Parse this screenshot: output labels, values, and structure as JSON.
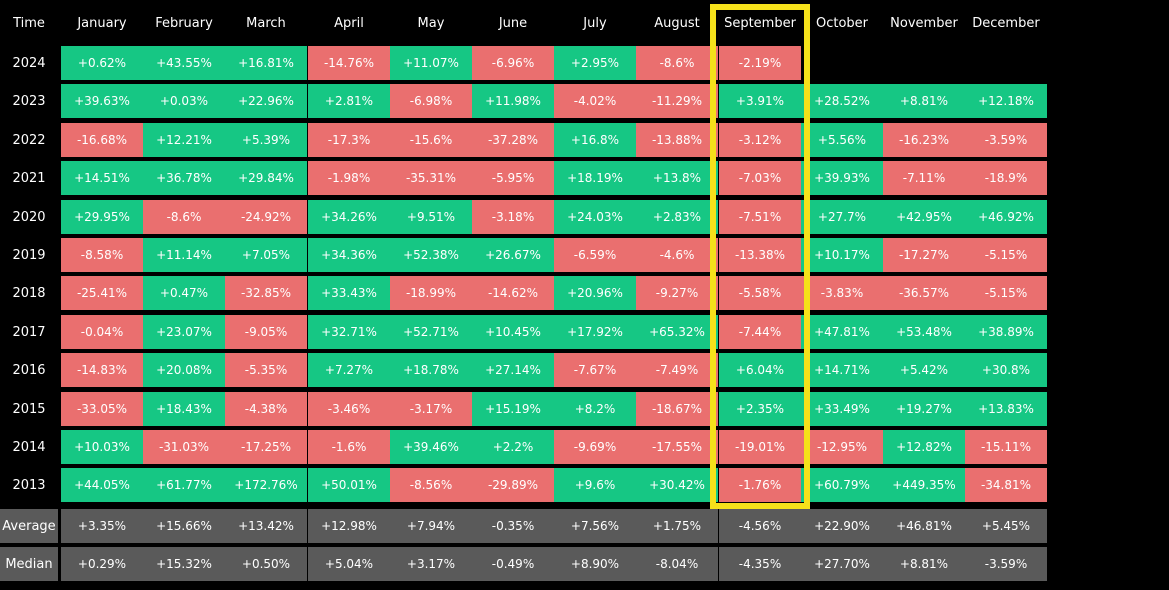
{
  "chart_data": {
    "type": "table",
    "corner_label": "Time",
    "columns": [
      "January",
      "February",
      "March",
      "April",
      "May",
      "June",
      "July",
      "August",
      "September",
      "October",
      "November",
      "December"
    ],
    "highlighted_column": "September",
    "rows": [
      {
        "label": "2024",
        "values": [
          "+0.62%",
          "+43.55%",
          "+16.81%",
          "-14.76%",
          "+11.07%",
          "-6.96%",
          "+2.95%",
          "-8.6%",
          "-2.19%",
          null,
          null,
          null
        ]
      },
      {
        "label": "2023",
        "values": [
          "+39.63%",
          "+0.03%",
          "+22.96%",
          "+2.81%",
          "-6.98%",
          "+11.98%",
          "-4.02%",
          "-11.29%",
          "+3.91%",
          "+28.52%",
          "+8.81%",
          "+12.18%"
        ]
      },
      {
        "label": "2022",
        "values": [
          "-16.68%",
          "+12.21%",
          "+5.39%",
          "-17.3%",
          "-15.6%",
          "-37.28%",
          "+16.8%",
          "-13.88%",
          "-3.12%",
          "+5.56%",
          "-16.23%",
          "-3.59%"
        ]
      },
      {
        "label": "2021",
        "values": [
          "+14.51%",
          "+36.78%",
          "+29.84%",
          "-1.98%",
          "-35.31%",
          "-5.95%",
          "+18.19%",
          "+13.8%",
          "-7.03%",
          "+39.93%",
          "-7.11%",
          "-18.9%"
        ]
      },
      {
        "label": "2020",
        "values": [
          "+29.95%",
          "-8.6%",
          "-24.92%",
          "+34.26%",
          "+9.51%",
          "-3.18%",
          "+24.03%",
          "+2.83%",
          "-7.51%",
          "+27.7%",
          "+42.95%",
          "+46.92%"
        ]
      },
      {
        "label": "2019",
        "values": [
          "-8.58%",
          "+11.14%",
          "+7.05%",
          "+34.36%",
          "+52.38%",
          "+26.67%",
          "-6.59%",
          "-4.6%",
          "-13.38%",
          "+10.17%",
          "-17.27%",
          "-5.15%"
        ]
      },
      {
        "label": "2018",
        "values": [
          "-25.41%",
          "+0.47%",
          "-32.85%",
          "+33.43%",
          "-18.99%",
          "-14.62%",
          "+20.96%",
          "-9.27%",
          "-5.58%",
          "-3.83%",
          "-36.57%",
          "-5.15%"
        ]
      },
      {
        "label": "2017",
        "values": [
          "-0.04%",
          "+23.07%",
          "-9.05%",
          "+32.71%",
          "+52.71%",
          "+10.45%",
          "+17.92%",
          "+65.32%",
          "-7.44%",
          "+47.81%",
          "+53.48%",
          "+38.89%"
        ]
      },
      {
        "label": "2016",
        "values": [
          "-14.83%",
          "+20.08%",
          "-5.35%",
          "+7.27%",
          "+18.78%",
          "+27.14%",
          "-7.67%",
          "-7.49%",
          "+6.04%",
          "+14.71%",
          "+5.42%",
          "+30.8%"
        ]
      },
      {
        "label": "2015",
        "values": [
          "-33.05%",
          "+18.43%",
          "-4.38%",
          "-3.46%",
          "-3.17%",
          "+15.19%",
          "+8.2%",
          "-18.67%",
          "+2.35%",
          "+33.49%",
          "+19.27%",
          "+13.83%"
        ]
      },
      {
        "label": "2014",
        "values": [
          "+10.03%",
          "-31.03%",
          "-17.25%",
          "-1.6%",
          "+39.46%",
          "+2.2%",
          "-9.69%",
          "-17.55%",
          "-19.01%",
          "-12.95%",
          "+12.82%",
          "-15.11%"
        ]
      },
      {
        "label": "2013",
        "values": [
          "+44.05%",
          "+61.77%",
          "+172.76%",
          "+50.01%",
          "-8.56%",
          "-29.89%",
          "+9.6%",
          "+30.42%",
          "-1.76%",
          "+60.79%",
          "+449.35%",
          "-34.81%"
        ]
      }
    ],
    "summary_rows": [
      {
        "label": "Average",
        "values": [
          "+3.35%",
          "+15.66%",
          "+13.42%",
          "+12.98%",
          "+7.94%",
          "-0.35%",
          "+7.56%",
          "+1.75%",
          "-4.56%",
          "+22.90%",
          "+46.81%",
          "+5.45%"
        ]
      },
      {
        "label": "Median",
        "values": [
          "+0.29%",
          "+15.32%",
          "+0.50%",
          "+5.04%",
          "+3.17%",
          "-0.49%",
          "+8.90%",
          "-8.04%",
          "-4.35%",
          "+27.70%",
          "+8.81%",
          "-3.59%"
        ]
      }
    ],
    "colors": {
      "positive": "#16c784",
      "negative": "#ea6f6f",
      "summary": "#5a5a5a",
      "background": "#000000",
      "highlight": "#f5e11a",
      "text": "#ffffff"
    }
  }
}
